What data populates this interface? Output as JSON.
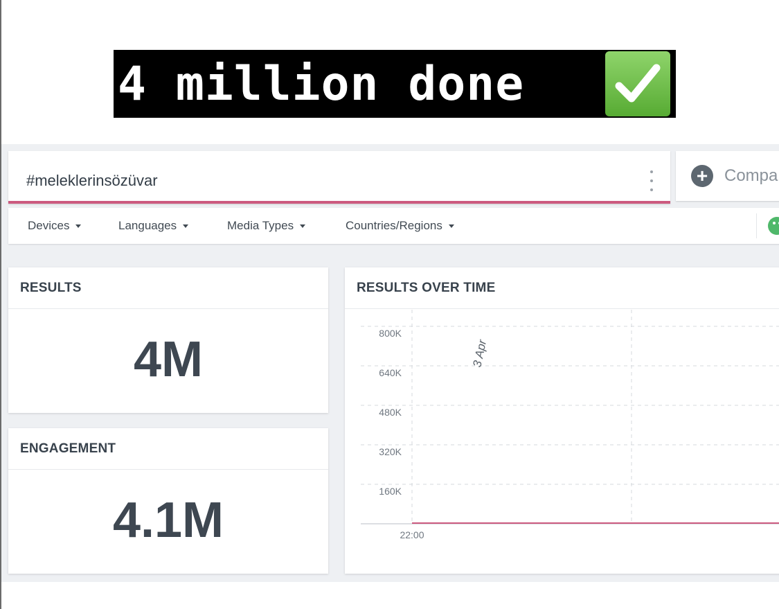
{
  "banner": {
    "text": "4 million done",
    "badge_icon": "check-mark-icon",
    "badge_color": "#5fb43a"
  },
  "search": {
    "value": "#meleklerinsözüvar",
    "underline_color": "#cc5a7f"
  },
  "compare": {
    "label": "Compa",
    "icon": "plus-circle-icon"
  },
  "filters": [
    {
      "label": "Devices"
    },
    {
      "label": "Languages"
    },
    {
      "label": "Media Types"
    },
    {
      "label": "Countries/Regions"
    }
  ],
  "results_card": {
    "title": "RESULTS",
    "value": "4M"
  },
  "engagement_card": {
    "title": "ENGAGEMENT",
    "value": "4.1M"
  },
  "chart_card": {
    "title": "RESULTS OVER TIME"
  },
  "chart_data": {
    "type": "line",
    "title": "RESULTS OVER TIME",
    "y_ticks": [
      "800K",
      "640K",
      "480K",
      "320K",
      "160K"
    ],
    "x_ticks": [
      "22:00"
    ],
    "annotation": "3 Apr",
    "series": [
      {
        "x": [
          "22:00"
        ],
        "values": [
          0
        ],
        "color": "#cc5a7f"
      }
    ],
    "ylim": [
      0,
      800000
    ],
    "grid": true
  }
}
